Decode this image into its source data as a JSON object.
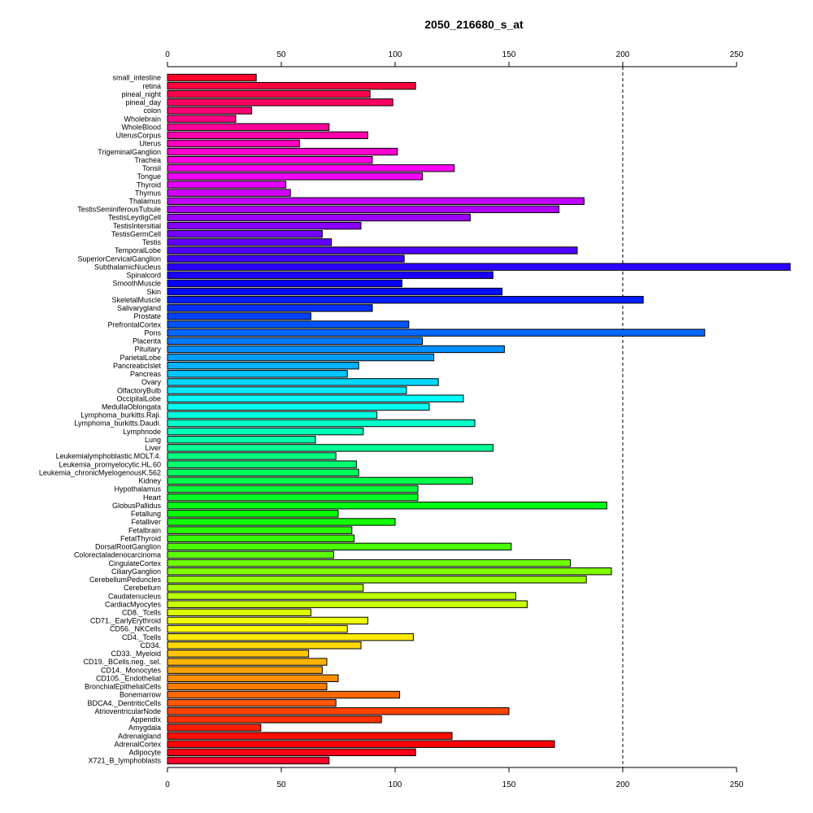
{
  "chart_data": {
    "type": "bar",
    "orientation": "horizontal",
    "title": "2050_216680_s_at",
    "xlabel": "",
    "ylabel": "",
    "xlim": [
      0,
      250
    ],
    "xticks": [
      0,
      50,
      100,
      150,
      200,
      250
    ],
    "reference_line": {
      "value": 200,
      "style": "dashed"
    },
    "grid": false,
    "legend": "none",
    "color_scheme": "rainbow (red to magenta to blue to cyan to green to yellow to orange to red)",
    "categories": [
      "small_intestine",
      "retina",
      "pineal_night",
      "pineal_day",
      "colon",
      "Wholebrain",
      "WholeBlood",
      "UterusCorpus",
      "Uterus",
      "TrigeminalGanglion",
      "Trachea",
      "Tonsil",
      "Tongue",
      "Thyroid",
      "Thymus",
      "Thalamus",
      "TestisSeminiferousTubule",
      "TestisLeydigCell",
      "TestisIntersitial",
      "TestisGermCell",
      "Testis",
      "TemporalLobe",
      "SuperiorCervicalGanglion",
      "SubthalamicNucleus",
      "Spinalcord",
      "SmoothMuscle",
      "Skin",
      "SkeletalMuscle",
      "Salivarygland",
      "Prostate",
      "PrefrontalCortex",
      "Pons",
      "Placenta",
      "Pituitary",
      "ParietalLobe",
      "PancreaticIslet",
      "Pancreas",
      "Ovary",
      "OlfactoryBulb",
      "OccipitalLobe",
      "MedullaOblongata",
      "Lymphoma_burkitts.Raji.",
      "Lymphoma_burkitts.Daudi.",
      "Lymphnode",
      "Lung",
      "Liver",
      "Leukemialymphoblastic.MOLT.4.",
      "Leukemia_promyelocytic.HL.60",
      "Leukemia_chronicMyelogenousK.562",
      "Kidney",
      "Hypothalamus",
      "Heart",
      "GlobusPallidus",
      "Fetallung",
      "Fetalliver",
      "Fetalbrain",
      "FetalThyroid",
      "DorsalRootGanglion",
      "Colorectaladenocarcinoma",
      "CingulateCortex",
      "CiliaryGanglion",
      "CerebellumPeduncles",
      "Cerebellum",
      "Caudatenucleus",
      "CardiacMyocytes",
      "CD8._Tcells",
      "CD71._EarlyErythroid",
      "CD56._NKCells",
      "CD4._Tcells",
      "CD34.",
      "CD33._Myeloid",
      "CD19._BCells.neg._sel.",
      "CD14._Monocytes",
      "CD105._Endothelial",
      "BronchialEpithelialCells",
      "Bonemarrow",
      "BDCA4._DentriticCells",
      "AtrioventricularNode",
      "Appendix",
      "Amygdala",
      "Adrenalgland",
      "AdrenalCortex",
      "Adipocyte",
      "X721_B_lymphoblasts"
    ],
    "values": [
      39,
      109,
      89,
      99,
      37,
      30,
      71,
      88,
      58,
      101,
      90,
      126,
      112,
      52,
      54,
      183,
      172,
      133,
      85,
      68,
      72,
      180,
      104,
      274,
      143,
      103,
      147,
      209,
      90,
      63,
      106,
      236,
      112,
      148,
      117,
      84,
      79,
      119,
      105,
      130,
      115,
      92,
      135,
      86,
      65,
      143,
      74,
      83,
      84,
      134,
      110,
      110,
      193,
      75,
      100,
      81,
      82,
      151,
      73,
      177,
      195,
      184,
      86,
      153,
      158,
      63,
      88,
      79,
      108,
      85,
      62,
      70,
      68,
      75,
      70,
      102,
      74,
      150,
      94,
      41,
      125,
      170,
      109,
      71
    ]
  }
}
